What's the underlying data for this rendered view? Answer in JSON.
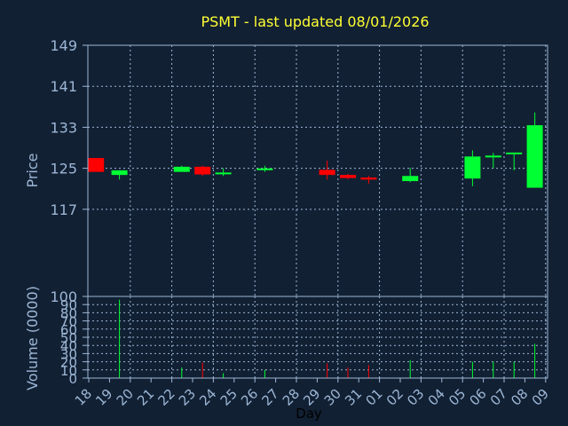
{
  "chart_data": {
    "type": "candlestick",
    "title": "PSMT - last updated 08/01/2026",
    "ylabel": "Price",
    "volume_ylabel": "Volume (0000)",
    "xlabel": "Day",
    "price_ylim": [
      100,
      149
    ],
    "price_ticks": [
      149,
      141,
      133,
      125,
      117,
      100
    ],
    "volume_ylim": [
      0,
      100
    ],
    "volume_ticks": [
      100,
      90,
      80,
      70,
      60,
      50,
      40,
      30,
      20,
      10,
      0
    ],
    "grid": true,
    "x_labels": [
      "18",
      "19",
      "20",
      "21",
      "22",
      "23",
      "24",
      "25",
      "26",
      "27",
      "28",
      "29",
      "30",
      "31",
      "01",
      "02",
      "03",
      "04",
      "05",
      "06",
      "07",
      "08",
      "09"
    ],
    "colors": {
      "up": "#00ff33",
      "down": "#ff0000",
      "background": "#122033",
      "grid": "#9cb7d6",
      "title": "#ffff33",
      "axis_text": "#9cb7d6"
    },
    "candles": [
      {
        "day": "18",
        "open": 127.0,
        "high": 127.0,
        "low": 124.3,
        "close": 124.3
      },
      {
        "day": "19",
        "open": 123.7,
        "high": 124.6,
        "low": 122.8,
        "close": 124.6
      },
      {
        "day": "22",
        "open": 124.3,
        "high": 125.5,
        "low": 124.3,
        "close": 125.3
      },
      {
        "day": "23",
        "open": 125.3,
        "high": 125.5,
        "low": 123.5,
        "close": 123.8
      },
      {
        "day": "24",
        "open": 123.8,
        "high": 125.0,
        "low": 123.5,
        "close": 124.0
      },
      {
        "day": "26",
        "open": 124.6,
        "high": 125.5,
        "low": 124.3,
        "close": 124.8
      },
      {
        "day": "29",
        "open": 124.7,
        "high": 126.5,
        "low": 122.8,
        "close": 123.7
      },
      {
        "day": "30",
        "open": 123.7,
        "high": 123.9,
        "low": 122.9,
        "close": 123.1
      },
      {
        "day": "31",
        "open": 123.2,
        "high": 123.5,
        "low": 122.0,
        "close": 122.8
      },
      {
        "day": "02",
        "open": 122.5,
        "high": 125.1,
        "low": 122.3,
        "close": 123.5
      },
      {
        "day": "05",
        "open": 123.0,
        "high": 128.5,
        "low": 121.5,
        "close": 127.3
      },
      {
        "day": "06",
        "open": 127.0,
        "high": 128.0,
        "low": 125.0,
        "close": 127.3
      },
      {
        "day": "07",
        "open": 127.6,
        "high": 128.0,
        "low": 124.6,
        "close": 127.9
      },
      {
        "day": "08",
        "open": 121.2,
        "high": 135.9,
        "low": 121.2,
        "close": 133.4
      }
    ],
    "volume": [
      {
        "day": "19",
        "value": 96,
        "direction": "up"
      },
      {
        "day": "22",
        "value": 13,
        "direction": "up"
      },
      {
        "day": "23",
        "value": 19,
        "direction": "down"
      },
      {
        "day": "24",
        "value": 6,
        "direction": "up"
      },
      {
        "day": "26",
        "value": 10,
        "direction": "up"
      },
      {
        "day": "29",
        "value": 18,
        "direction": "down"
      },
      {
        "day": "30",
        "value": 13,
        "direction": "down"
      },
      {
        "day": "31",
        "value": 16,
        "direction": "down"
      },
      {
        "day": "02",
        "value": 22,
        "direction": "up"
      },
      {
        "day": "05",
        "value": 20,
        "direction": "up"
      },
      {
        "day": "06",
        "value": 20,
        "direction": "up"
      },
      {
        "day": "07",
        "value": 20,
        "direction": "up"
      },
      {
        "day": "08",
        "value": 42,
        "direction": "up"
      }
    ]
  }
}
